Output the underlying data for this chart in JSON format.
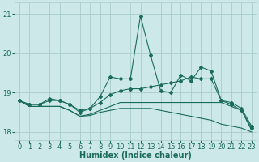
{
  "xlabel": "Humidex (Indice chaleur)",
  "bg_color": "#cce8e8",
  "grid_color": "#aacccc",
  "line_color": "#1a6b5a",
  "x": [
    0,
    1,
    2,
    3,
    4,
    5,
    6,
    7,
    8,
    9,
    10,
    11,
    12,
    13,
    14,
    15,
    16,
    17,
    18,
    19,
    20,
    21,
    22,
    23
  ],
  "line1": [
    18.8,
    18.7,
    18.7,
    18.85,
    18.8,
    18.7,
    18.5,
    18.6,
    18.9,
    19.4,
    19.35,
    19.35,
    20.95,
    19.95,
    19.05,
    19.0,
    19.45,
    19.3,
    19.65,
    19.55,
    18.8,
    18.75,
    18.6,
    18.15
  ],
  "line2": [
    18.8,
    18.7,
    18.7,
    18.8,
    18.8,
    18.7,
    18.55,
    18.6,
    18.75,
    18.95,
    19.05,
    19.1,
    19.1,
    19.15,
    19.2,
    19.25,
    19.3,
    19.4,
    19.35,
    19.35,
    18.8,
    18.7,
    18.55,
    18.1
  ],
  "line3": [
    18.8,
    18.65,
    18.65,
    18.65,
    18.65,
    18.55,
    18.4,
    18.45,
    18.55,
    18.65,
    18.75,
    18.75,
    18.75,
    18.75,
    18.75,
    18.75,
    18.75,
    18.75,
    18.75,
    18.75,
    18.75,
    18.65,
    18.55,
    18.05
  ],
  "line4": [
    18.8,
    18.65,
    18.65,
    18.65,
    18.65,
    18.55,
    18.4,
    18.42,
    18.5,
    18.55,
    18.6,
    18.6,
    18.6,
    18.6,
    18.55,
    18.5,
    18.45,
    18.4,
    18.35,
    18.3,
    18.2,
    18.15,
    18.1,
    18.0
  ],
  "ylim": [
    17.8,
    21.3
  ],
  "yticks": [
    18,
    19,
    20,
    21
  ],
  "xticks": [
    0,
    1,
    2,
    3,
    4,
    5,
    6,
    7,
    8,
    9,
    10,
    11,
    12,
    13,
    14,
    15,
    16,
    17,
    18,
    19,
    20,
    21,
    22,
    23
  ]
}
